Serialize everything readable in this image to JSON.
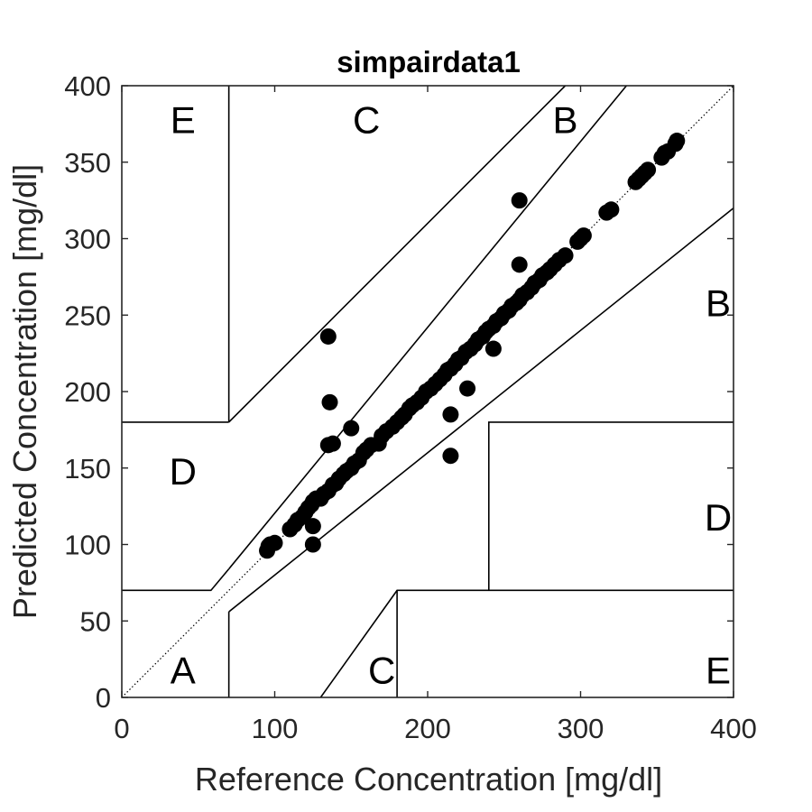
{
  "chart_data": {
    "type": "scatter",
    "title": "simpairdata1",
    "xlabel": "Reference Concentration [mg/dl]",
    "ylabel": "Predicted Concentration [mg/dl]",
    "xlim": [
      0,
      400
    ],
    "ylim": [
      0,
      400
    ],
    "xticks": [
      "0",
      "100",
      "200",
      "300",
      "400"
    ],
    "yticks": [
      "0",
      "50",
      "100",
      "150",
      "200",
      "250",
      "300",
      "350",
      "400"
    ],
    "grid": false,
    "identity_line": true,
    "zone_labels": [
      {
        "label": "E",
        "x": 40,
        "y": 378
      },
      {
        "label": "C",
        "x": 160,
        "y": 378
      },
      {
        "label": "B",
        "x": 290,
        "y": 378
      },
      {
        "label": "B",
        "x": 390,
        "y": 258
      },
      {
        "label": "D",
        "x": 40,
        "y": 148
      },
      {
        "label": "D",
        "x": 390,
        "y": 118
      },
      {
        "label": "A",
        "x": 40,
        "y": 18
      },
      {
        "label": "C",
        "x": 170,
        "y": 18
      },
      {
        "label": "E",
        "x": 390,
        "y": 18
      }
    ],
    "zone_boundaries": [
      [
        [
          70,
          180
        ],
        [
          70,
          400
        ]
      ],
      [
        [
          0,
          180
        ],
        [
          70,
          180
        ]
      ],
      [
        [
          70,
          180
        ],
        [
          290,
          400
        ]
      ],
      [
        [
          70,
          84
        ],
        [
          330,
          400
        ]
      ],
      [
        [
          0,
          70
        ],
        [
          58.3,
          70
        ],
        [
          70,
          84
        ]
      ],
      [
        [
          70,
          0
        ],
        [
          70,
          56
        ]
      ],
      [
        [
          70,
          56
        ],
        [
          400,
          320
        ]
      ],
      [
        [
          130,
          0
        ],
        [
          180,
          70
        ],
        [
          400,
          70
        ]
      ],
      [
        [
          180,
          0
        ],
        [
          180,
          70
        ]
      ],
      [
        [
          240,
          70
        ],
        [
          240,
          180
        ],
        [
          400,
          180
        ]
      ]
    ],
    "series": [
      {
        "points": [
          [
            95,
            96
          ],
          [
            96,
            99
          ],
          [
            97,
            100
          ],
          [
            100,
            101
          ],
          [
            110,
            110
          ],
          [
            113,
            113
          ],
          [
            115,
            116
          ],
          [
            118,
            118
          ],
          [
            120,
            121
          ],
          [
            122,
            124
          ],
          [
            124,
            126
          ],
          [
            125,
            128
          ],
          [
            127,
            130
          ],
          [
            125,
            112
          ],
          [
            125,
            100
          ],
          [
            130,
            130
          ],
          [
            132,
            133
          ],
          [
            135,
            135
          ],
          [
            138,
            139
          ],
          [
            140,
            140
          ],
          [
            142,
            143
          ],
          [
            145,
            146
          ],
          [
            147,
            148
          ],
          [
            150,
            150
          ],
          [
            152,
            153
          ],
          [
            155,
            155
          ],
          [
            150,
            176
          ],
          [
            135,
            165
          ],
          [
            138,
            166
          ],
          [
            136,
            193
          ],
          [
            135,
            236
          ],
          [
            158,
            160
          ],
          [
            160,
            162
          ],
          [
            163,
            165
          ],
          [
            168,
            166
          ],
          [
            170,
            171
          ],
          [
            173,
            174
          ],
          [
            177,
            177
          ],
          [
            180,
            180
          ],
          [
            183,
            183
          ],
          [
            185,
            185
          ],
          [
            188,
            189
          ],
          [
            190,
            191
          ],
          [
            193,
            193
          ],
          [
            196,
            196
          ],
          [
            199,
            200
          ],
          [
            202,
            202
          ],
          [
            205,
            205
          ],
          [
            208,
            208
          ],
          [
            211,
            211
          ],
          [
            213,
            214
          ],
          [
            215,
            215
          ],
          [
            218,
            218
          ],
          [
            220,
            221
          ],
          [
            222,
            222
          ],
          [
            225,
            226
          ],
          [
            228,
            228
          ],
          [
            231,
            231
          ],
          [
            233,
            234
          ],
          [
            236,
            236
          ],
          [
            238,
            239
          ],
          [
            240,
            241
          ],
          [
            243,
            243
          ],
          [
            245,
            246
          ],
          [
            248,
            248
          ],
          [
            250,
            251
          ],
          [
            253,
            253
          ],
          [
            255,
            256
          ],
          [
            258,
            258
          ],
          [
            260,
            260
          ],
          [
            262,
            263
          ],
          [
            265,
            265
          ],
          [
            268,
            268
          ],
          [
            270,
            271
          ],
          [
            273,
            273
          ],
          [
            275,
            276
          ],
          [
            278,
            278
          ],
          [
            280,
            280
          ],
          [
            283,
            283
          ],
          [
            286,
            286
          ],
          [
            290,
            289
          ],
          [
            215,
            185
          ],
          [
            215,
            158
          ],
          [
            226,
            202
          ],
          [
            243,
            228
          ],
          [
            260,
            283
          ],
          [
            260,
            325
          ],
          [
            298,
            298
          ],
          [
            300,
            300
          ],
          [
            302,
            302
          ],
          [
            317,
            317
          ],
          [
            320,
            319
          ],
          [
            336,
            337
          ],
          [
            338,
            339
          ],
          [
            340,
            341
          ],
          [
            342,
            343
          ],
          [
            344,
            345
          ],
          [
            353,
            353
          ],
          [
            355,
            356
          ],
          [
            357,
            357
          ],
          [
            362,
            362
          ],
          [
            363,
            364
          ]
        ]
      }
    ]
  }
}
